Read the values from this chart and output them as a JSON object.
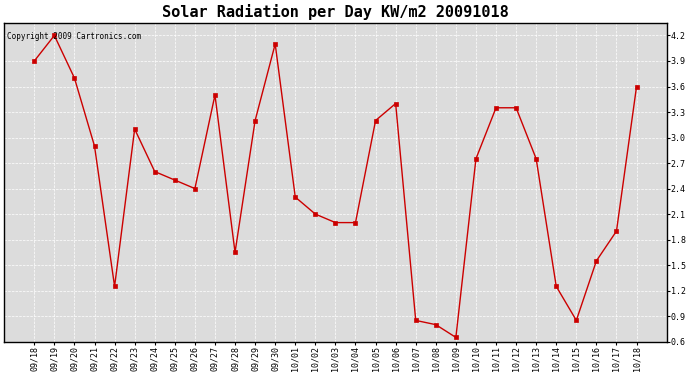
{
  "title": "Solar Radiation per Day KW/m2 20091018",
  "copyright": "Copyright 2009 Cartronics.com",
  "labels": [
    "09/18",
    "09/19",
    "09/20",
    "09/21",
    "09/22",
    "09/23",
    "09/24",
    "09/25",
    "09/26",
    "09/27",
    "09/28",
    "09/29",
    "09/30",
    "10/01",
    "10/02",
    "10/03",
    "10/04",
    "10/05",
    "10/06",
    "10/07",
    "10/08",
    "10/09",
    "10/10",
    "10/11",
    "10/12",
    "10/13",
    "10/14",
    "10/15",
    "10/16",
    "10/17",
    "10/18"
  ],
  "values": [
    3.9,
    4.2,
    3.7,
    2.9,
    1.25,
    3.1,
    2.6,
    2.5,
    2.4,
    3.5,
    1.65,
    3.2,
    4.1,
    2.3,
    2.1,
    2.0,
    2.0,
    3.2,
    3.4,
    0.85,
    0.8,
    0.65,
    2.75,
    3.35,
    3.35,
    2.75,
    1.25,
    0.85,
    1.55,
    1.9,
    3.6
  ],
  "ylim": [
    0.6,
    4.35
  ],
  "yticks": [
    0.6,
    0.9,
    1.2,
    1.5,
    1.8,
    2.1,
    2.4,
    2.7,
    3.0,
    3.3,
    3.6,
    3.9,
    4.2
  ],
  "line_color": "#cc0000",
  "marker": "s",
  "marker_size": 2.5,
  "bg_color": "#ffffff",
  "plot_bg_color": "#dcdcdc",
  "grid_color": "#ffffff",
  "title_fontsize": 11,
  "tick_fontsize": 6,
  "copyright_fontsize": 5.5
}
